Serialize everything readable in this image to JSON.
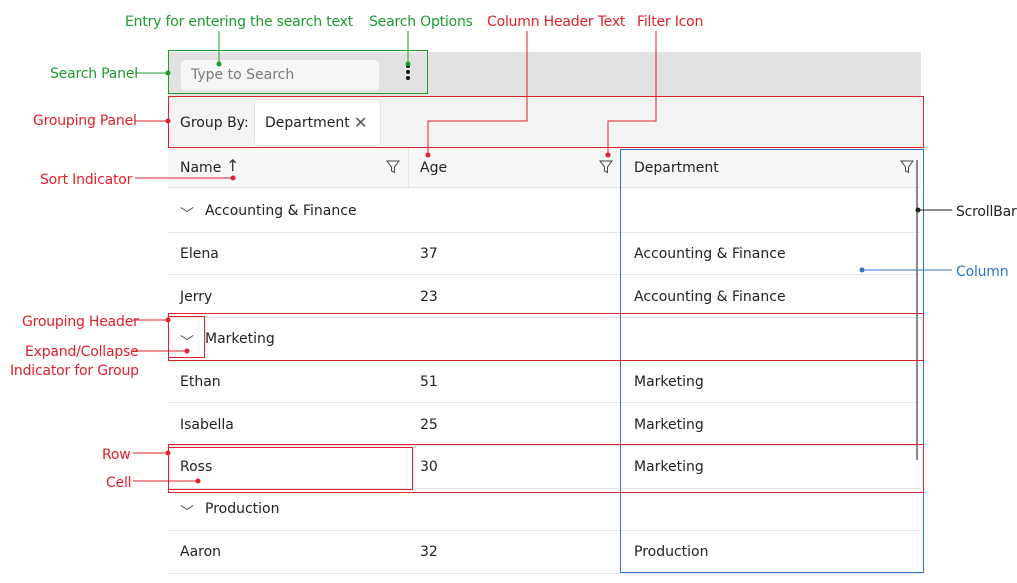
{
  "search": {
    "placeholder": "Type to Search"
  },
  "grouping": {
    "label": "Group By:",
    "chip": "Department"
  },
  "columns": [
    "Name",
    "Age",
    "Department"
  ],
  "groups": [
    {
      "title": "Accounting & Finance",
      "rows": [
        [
          "Elena",
          "37",
          "Accounting & Finance"
        ],
        [
          "Jerry",
          "23",
          "Accounting & Finance"
        ]
      ]
    },
    {
      "title": "Marketing",
      "rows": [
        [
          "Ethan",
          "51",
          "Marketing"
        ],
        [
          "Isabella",
          "25",
          "Marketing"
        ],
        [
          "Ross",
          "30",
          "Marketing"
        ]
      ]
    },
    {
      "title": "Production",
      "rows": [
        [
          "Aaron",
          "32",
          "Production"
        ]
      ]
    }
  ],
  "annotations": {
    "entry": "Entry for entering the search text",
    "search_options": "Search Options",
    "column_header_text": "Column Header Text",
    "filter_icon": "Filter Icon",
    "search_panel": "Search Panel",
    "grouping_panel": "Grouping Panel",
    "sort_indicator": "Sort  Indicator",
    "scrollbar": "ScrollBar",
    "column": "Column",
    "grouping_header": "Grouping Header",
    "expand_collapse_1": "Expand/Collapse",
    "expand_collapse_2": "Indicator for Group",
    "row": "Row",
    "cell": "Cell"
  },
  "colors": {
    "red": "#e0202a",
    "green": "#1e9a2e",
    "blue": "#2f74c8"
  }
}
